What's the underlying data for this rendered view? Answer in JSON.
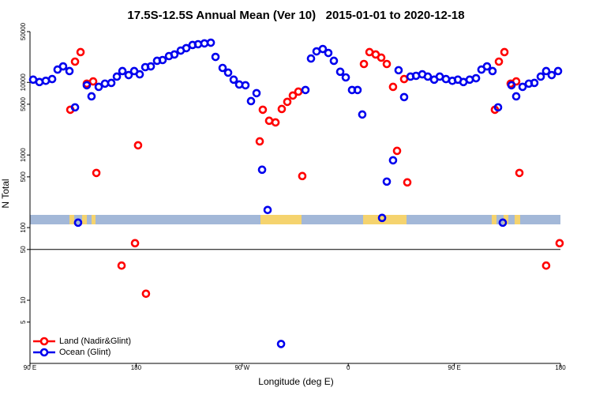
{
  "chart_data": {
    "type": "scatter",
    "title": "17.5S-12.5S Annual Mean (Ver 10)   2015-01-01 to 2020-12-18",
    "x_label": "Longitude (deg E)",
    "y_label": "N Total",
    "xlim": [
      90,
      540
    ],
    "xticks": [
      {
        "value": 90,
        "label": "90 E"
      },
      {
        "value": 180,
        "label": "180"
      },
      {
        "value": 270,
        "label": "90 W"
      },
      {
        "value": 360,
        "label": "0"
      },
      {
        "value": 450,
        "label": "90 E"
      },
      {
        "value": 540,
        "label": "180"
      }
    ],
    "ylim": [
      1.35,
      50000
    ],
    "y_log": true,
    "yticks": [
      5,
      10,
      50,
      100,
      500,
      1000,
      5000,
      10000,
      50000
    ],
    "reference_line": 50,
    "legend_position": "lower left",
    "series": [
      {
        "name": "Land (Nadir&Glint)",
        "color": "#ff0000",
        "x": [
          124.2,
          128.2,
          132.9,
          138.2,
          143.6,
          146.3,
          167.7,
          179.1,
          181.7,
          188.4,
          284.9,
          287.5,
          292.9,
          298.3,
          303.6,
          308.3,
          313,
          317.7,
          321,
          373.3,
          378,
          383.3,
          388,
          392.7,
          398,
          401.4,
          407.4,
          410.1,
          484.4,
          487.8,
          492.5,
          497.8,
          502.5,
          505.2,
          527.9,
          539.3
        ],
        "values": [
          4200,
          19300,
          26100,
          9600,
          10300,
          566,
          30,
          61,
          1360,
          12.3,
          1540,
          4200,
          2960,
          2810,
          4300,
          5390,
          6590,
          7460,
          513,
          17900,
          26100,
          24200,
          21900,
          17900,
          8670,
          1140,
          11100,
          420,
          4200,
          19300,
          26100,
          9600,
          10300,
          566,
          30,
          61
        ]
      },
      {
        "name": "Ocean (Glint)",
        "color": "#0000ee",
        "x": [
          92.7,
          98,
          103.4,
          108.8,
          113.4,
          118.1,
          123.5,
          128.2,
          130.8,
          138.2,
          142.2,
          148.3,
          153.6,
          159,
          163.7,
          168.4,
          173.7,
          178.4,
          183.1,
          187.8,
          192.5,
          197.8,
          202.5,
          207.9,
          212.5,
          217.9,
          222.6,
          227.9,
          232.6,
          238,
          243.4,
          247.4,
          253.4,
          258.1,
          262.8,
          267.5,
          272.8,
          277.5,
          282.2,
          286.9,
          291.6,
          303,
          323.7,
          328.4,
          333.1,
          338.4,
          343.1,
          347.8,
          353.2,
          357.9,
          363.2,
          367.9,
          371.9,
          388.7,
          392.7,
          398,
          402.7,
          407.4,
          412.8,
          417.5,
          422.8,
          427.5,
          432.9,
          437.6,
          442.9,
          448.3,
          453,
          457.7,
          463,
          468.4,
          473,
          477.7,
          482.4,
          487.1,
          491.1,
          498.5,
          502.5,
          507.9,
          513.2,
          517.9,
          523.3,
          527.9,
          532.6,
          538
        ],
        "values": [
          10900,
          10100,
          10500,
          11100,
          15000,
          16600,
          14300,
          4530,
          117,
          9120,
          6420,
          8670,
          9600,
          9820,
          12000,
          14300,
          12600,
          14300,
          12900,
          16200,
          16600,
          19800,
          20300,
          23000,
          24200,
          27400,
          29600,
          32700,
          33500,
          34400,
          35200,
          22400,
          15800,
          13600,
          10900,
          9350,
          9120,
          5520,
          7100,
          627,
          175,
          2.5,
          7850,
          21300,
          26700,
          28800,
          25400,
          19800,
          14000,
          11700,
          7850,
          7850,
          3610,
          136,
          430,
          845,
          14700,
          6270,
          12000,
          12300,
          12900,
          12000,
          10900,
          12000,
          11100,
          10500,
          10900,
          10100,
          10900,
          11400,
          15000,
          16600,
          14300,
          4530,
          117,
          9120,
          6420,
          8670,
          9600,
          9820,
          12000,
          14300,
          12600,
          14300
        ]
      }
    ]
  }
}
